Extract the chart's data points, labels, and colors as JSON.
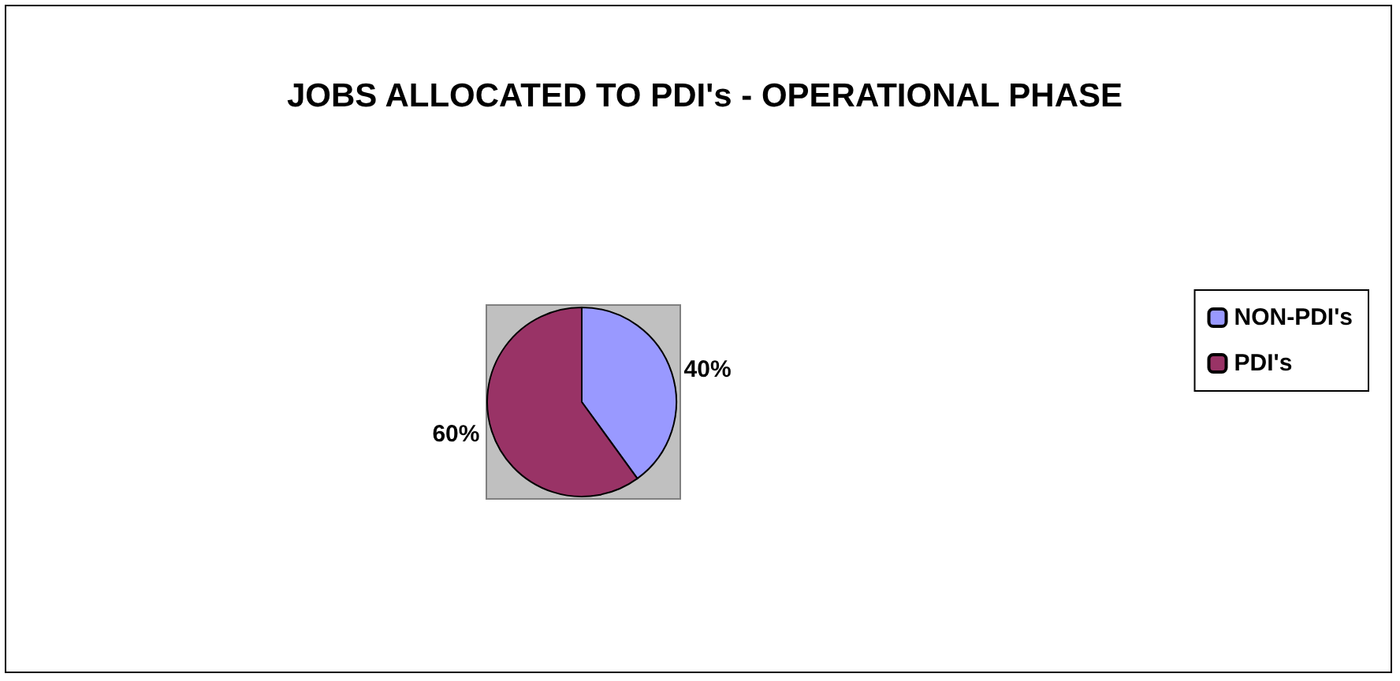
{
  "chart_data": {
    "type": "pie",
    "title": "JOBS ALLOCATED TO PDI's - OPERATIONAL PHASE",
    "categories": [
      "NON-PDI's",
      "PDI's"
    ],
    "values": [
      40,
      60
    ],
    "colors": [
      "#9999ff",
      "#993366"
    ],
    "value_labels": [
      "40%",
      "60%"
    ],
    "legend": "right"
  }
}
